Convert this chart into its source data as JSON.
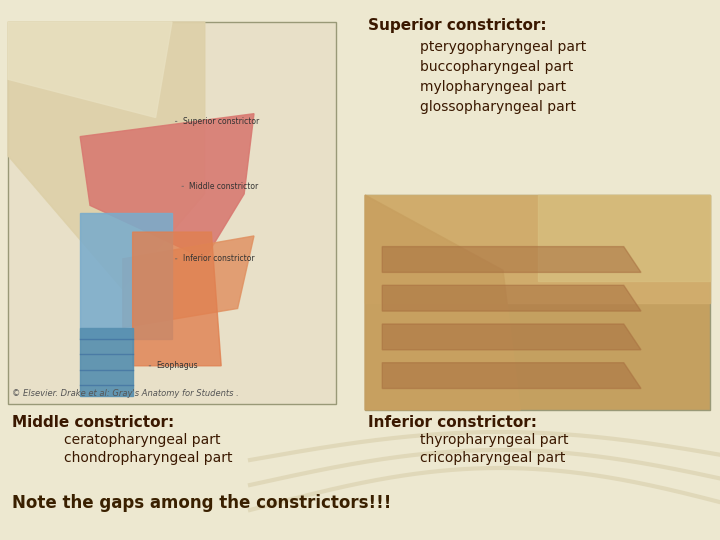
{
  "bg_color": "#ede8d0",
  "title_text": "Note the gaps among the constrictors!!!",
  "title_fontsize": 12,
  "title_color": "#3a2000",
  "superior_header": "Superior constrictor:",
  "superior_parts": [
    "pterygopharyngeal part",
    "buccopharyngeal part",
    "mylopharyngeal part",
    "glossopharyngeal part"
  ],
  "middle_header": "Middle constrictor:",
  "middle_parts": [
    "ceratopharyngeal part",
    "chondropharyngeal part"
  ],
  "inferior_header": "Inferior constrictor:",
  "inferior_parts": [
    "thyropharyngeal part",
    "cricopharyngeal part"
  ],
  "header_color": "#3a1800",
  "header_fontsize": 11,
  "parts_color": "#3a1800",
  "parts_fontsize": 10,
  "copyright_text": "© Elsevier. Drake et al: Gray's Anatomy for Students .",
  "copyright_fontsize": 6,
  "copyright_color": "#555555",
  "swirl_color": "#d8ceaa",
  "left_box_color": "#e8e0c8",
  "right_box_color": "#c8a870",
  "border_color": "#999977"
}
